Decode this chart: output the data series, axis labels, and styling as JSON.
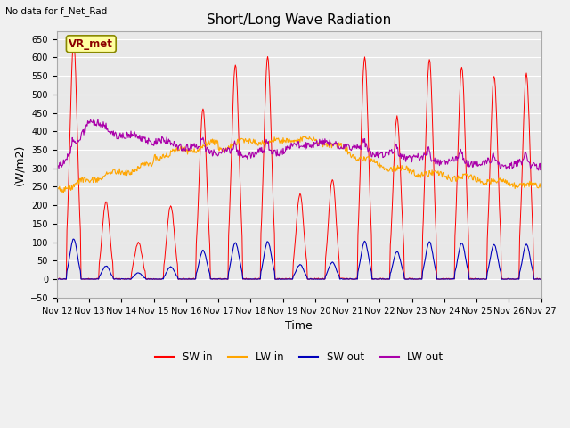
{
  "title": "Short/Long Wave Radiation",
  "top_left_text": "No data for f_Net_Rad",
  "legend_box_label": "VR_met",
  "xlabel": "Time",
  "ylabel": "(W/m2)",
  "ylim": [
    -50,
    670
  ],
  "yticks": [
    -50,
    0,
    50,
    100,
    150,
    200,
    250,
    300,
    350,
    400,
    450,
    500,
    550,
    600,
    650
  ],
  "xtick_labels": [
    "Nov 12",
    "Nov 13",
    "Nov 14",
    "Nov 15",
    "Nov 16",
    "Nov 17",
    "Nov 18",
    "Nov 19",
    "Nov 20",
    "Nov 21",
    "Nov 22",
    "Nov 23",
    "Nov 24",
    "Nov 25",
    "Nov 26",
    "Nov 27"
  ],
  "colors": {
    "SW_in": "#FF0000",
    "LW_in": "#FFA500",
    "SW_out": "#0000BB",
    "LW_out": "#AA00AA"
  },
  "fig_facecolor": "#F0F0F0",
  "ax_facecolor": "#E8E8E8",
  "grid_color": "#FFFFFF",
  "title_fontsize": 11,
  "tick_fontsize": 7,
  "label_fontsize": 9
}
